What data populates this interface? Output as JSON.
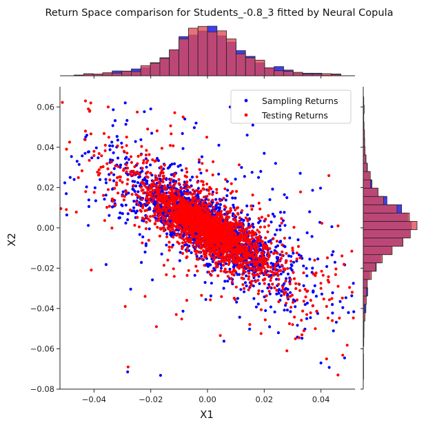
{
  "chart_data": {
    "type": "scatter",
    "title": "Return Space comparison for Students_-0.8_3 fitted by Neural Copula",
    "xlabel": "X1",
    "ylabel": "X2",
    "xlim": [
      -0.052,
      0.052
    ],
    "ylim": [
      -0.08,
      0.07
    ],
    "x_ticks": [
      {
        "value": -0.04,
        "label": "−0.04"
      },
      {
        "value": -0.02,
        "label": "−0.02"
      },
      {
        "value": 0.0,
        "label": "0.00"
      },
      {
        "value": 0.02,
        "label": "0.02"
      },
      {
        "value": 0.04,
        "label": "0.04"
      }
    ],
    "y_ticks": [
      {
        "value": -0.08,
        "label": "−0.08"
      },
      {
        "value": -0.06,
        "label": "−0.06"
      },
      {
        "value": -0.04,
        "label": "−0.04"
      },
      {
        "value": -0.02,
        "label": "−0.02"
      },
      {
        "value": 0.0,
        "label": "0.00"
      },
      {
        "value": 0.02,
        "label": "0.02"
      },
      {
        "value": 0.04,
        "label": "0.04"
      },
      {
        "value": 0.06,
        "label": "0.06"
      }
    ],
    "legend": {
      "placement": "top-right",
      "entries": [
        "Sampling Returns",
        "Testing Returns"
      ]
    },
    "grid": false,
    "series": [
      {
        "name": "Sampling Returns",
        "color": "#0000ff",
        "correlation": -0.8,
        "degrees_of_freedom": 3,
        "scale": 0.0105,
        "points": [
          [
            -0.047,
            0.024
          ],
          [
            -0.029,
            0.062
          ],
          [
            -0.02,
            0.059
          ],
          [
            -0.008,
            0.054
          ],
          [
            0.008,
            0.06
          ],
          [
            0.014,
            0.046
          ],
          [
            0.02,
            0.037
          ],
          [
            0.024,
            0.032
          ],
          [
            0.028,
            0.015
          ],
          [
            0.036,
            0.008
          ],
          [
            0.029,
            -0.005
          ],
          [
            0.033,
            -0.014
          ],
          [
            0.037,
            -0.02
          ],
          [
            0.035,
            -0.045
          ],
          [
            0.044,
            -0.038
          ],
          [
            0.04,
            -0.067
          ],
          [
            0.025,
            -0.052
          ],
          [
            0.022,
            0.014
          ],
          [
            0.018,
            0.025
          ],
          [
            0.012,
            0.03
          ],
          [
            0.004,
            0.041
          ],
          [
            -0.004,
            0.052
          ],
          [
            0.016,
            0.051
          ],
          [
            -0.03,
            0.011
          ],
          [
            -0.022,
            -0.012
          ]
        ]
      },
      {
        "name": "Testing Returns",
        "color": "#ff0000",
        "correlation": -0.8,
        "degrees_of_freedom": 3,
        "scale": 0.0105,
        "points": [
          [
            -0.043,
            0.063
          ],
          [
            -0.035,
            0.06
          ],
          [
            -0.042,
            0.059
          ],
          [
            -0.043,
            0.048
          ],
          [
            -0.04,
            0.038
          ],
          [
            -0.036,
            0.041
          ],
          [
            -0.038,
            0.027
          ],
          [
            -0.035,
            0.019
          ],
          [
            -0.029,
            -0.039
          ],
          [
            -0.028,
            -0.069
          ],
          [
            -0.022,
            -0.034
          ],
          [
            -0.018,
            -0.049
          ],
          [
            -0.014,
            -0.016
          ],
          [
            -0.011,
            -0.043
          ],
          [
            0.042,
            -0.065
          ],
          [
            0.046,
            -0.073
          ],
          [
            0.044,
            -0.046
          ],
          [
            0.038,
            -0.05
          ],
          [
            0.034,
            -0.051
          ],
          [
            0.031,
            -0.055
          ],
          [
            0.028,
            -0.061
          ],
          [
            0.035,
            -0.043
          ],
          [
            0.04,
            -0.03
          ],
          [
            0.042,
            -0.039
          ],
          [
            0.03,
            -0.048
          ]
        ]
      }
    ],
    "marginals": [
      {
        "axis": "x",
        "type": "histogram",
        "series": [
          "Sampling Returns",
          "Testing Returns"
        ]
      },
      {
        "axis": "y",
        "type": "histogram",
        "series": [
          "Sampling Returns",
          "Testing Returns"
        ]
      }
    ]
  }
}
